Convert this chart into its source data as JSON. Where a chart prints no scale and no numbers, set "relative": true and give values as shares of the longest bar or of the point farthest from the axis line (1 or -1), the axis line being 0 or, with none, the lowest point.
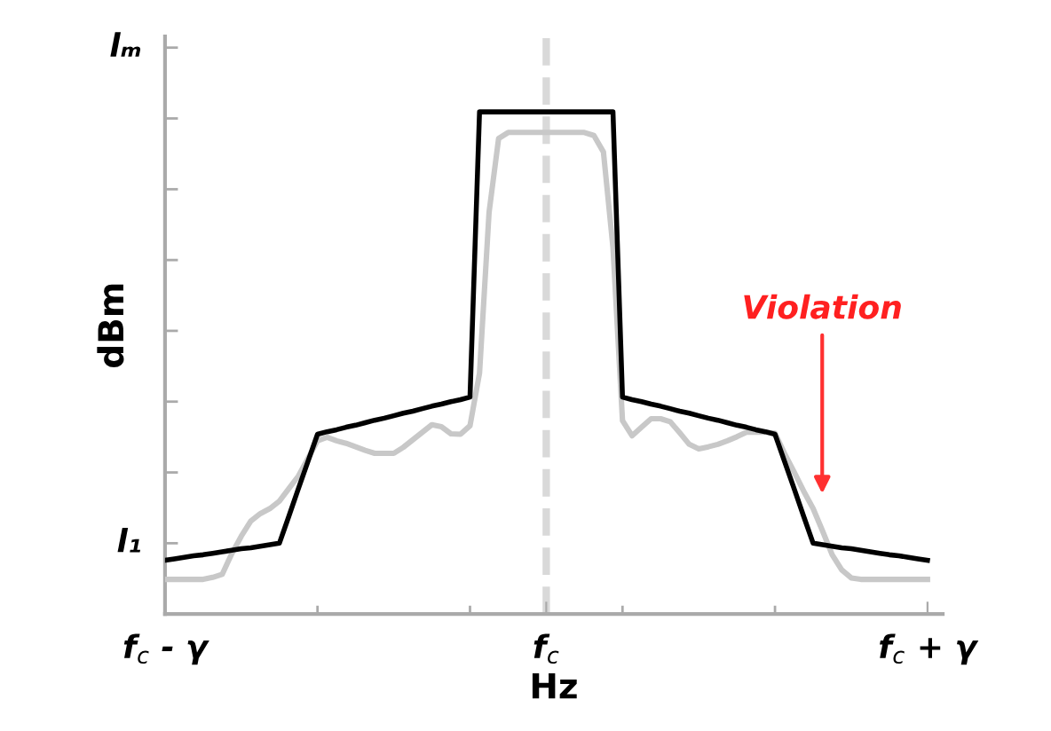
{
  "chart_data": {
    "type": "line",
    "xlabel": "Hz",
    "ylabel": "dBm",
    "relative": true,
    "categories": [
      "f$_{c}$ - γ",
      null,
      null,
      null,
      null,
      null,
      null,
      null,
      null,
      null,
      null,
      null,
      null,
      null,
      null,
      null,
      null,
      null,
      null,
      null,
      null,
      null,
      null,
      null,
      null,
      null,
      null,
      null,
      null,
      null,
      null,
      null,
      null,
      null,
      null,
      null,
      null,
      null,
      null,
      null,
      "f$_{c}$",
      null,
      null,
      null,
      null,
      null,
      null,
      null,
      null,
      null,
      null,
      null,
      null,
      null,
      null,
      null,
      null,
      null,
      null,
      null,
      null,
      null,
      null,
      null,
      null,
      null,
      null,
      null,
      null,
      null,
      null,
      null,
      null,
      null,
      null,
      null,
      null,
      null,
      null,
      null,
      "f$_{c}$ + γ"
    ],
    "series": [
      {
        "color": "#c8c8c8",
        "values": [
          0.069,
          0.069,
          0.069,
          0.069,
          0.069,
          0.073,
          0.079,
          0.12,
          0.155,
          0.185,
          0.2,
          0.21,
          0.225,
          0.25,
          0.275,
          0.31,
          0.345,
          0.352,
          0.345,
          0.34,
          0.333,
          0.326,
          0.32,
          0.32,
          0.32,
          0.332,
          0.347,
          0.362,
          0.377,
          0.373,
          0.359,
          0.358,
          0.375,
          0.48,
          0.8,
          0.947,
          0.959,
          0.959,
          0.959,
          0.959,
          0.959,
          0.959,
          0.959,
          0.959,
          0.959,
          0.953,
          0.92,
          0.73,
          0.385,
          0.355,
          0.372,
          0.389,
          0.389,
          0.383,
          0.361,
          0.338,
          0.329,
          0.333,
          0.338,
          0.345,
          0.353,
          0.362,
          0.362,
          0.362,
          0.36,
          0.32,
          0.283,
          0.245,
          0.21,
          0.165,
          0.118,
          0.088,
          0.072,
          0.069,
          0.069,
          0.069,
          0.069,
          0.069,
          0.069,
          0.069,
          0.069
        ]
      },
      {
        "color": "#000000",
        "values": [
          0.107,
          0.11,
          0.113,
          0.116,
          0.118,
          0.121,
          0.124,
          0.127,
          0.13,
          0.132,
          0.135,
          0.138,
          0.141,
          0.195,
          0.25,
          0.304,
          0.358,
          0.363,
          0.367,
          0.372,
          0.376,
          0.381,
          0.386,
          0.39,
          0.395,
          0.4,
          0.404,
          0.409,
          0.414,
          0.418,
          0.423,
          0.427,
          0.432,
          1,
          1,
          1,
          1,
          1,
          1,
          1,
          1,
          1,
          1,
          1,
          1,
          1,
          1,
          1,
          0.432,
          0.427,
          0.423,
          0.418,
          0.414,
          0.409,
          0.404,
          0.4,
          0.395,
          0.39,
          0.386,
          0.381,
          0.376,
          0.372,
          0.367,
          0.363,
          0.358,
          0.304,
          0.25,
          0.195,
          0.141,
          0.138,
          0.135,
          0.132,
          0.13,
          0.127,
          0.124,
          0.121,
          0.118,
          0.116,
          0.113,
          0.11,
          0.107
        ]
      }
    ],
    "ref_lines": [
      {
        "axis": "x",
        "value": "f$_{c}$",
        "color": "#d9d9d9",
        "line_style": "dashed"
      }
    ],
    "annotations": [
      "l₁",
      "lₘ",
      "Violation"
    ],
    "legend": false,
    "marker": "none",
    "line_style": "solid"
  }
}
